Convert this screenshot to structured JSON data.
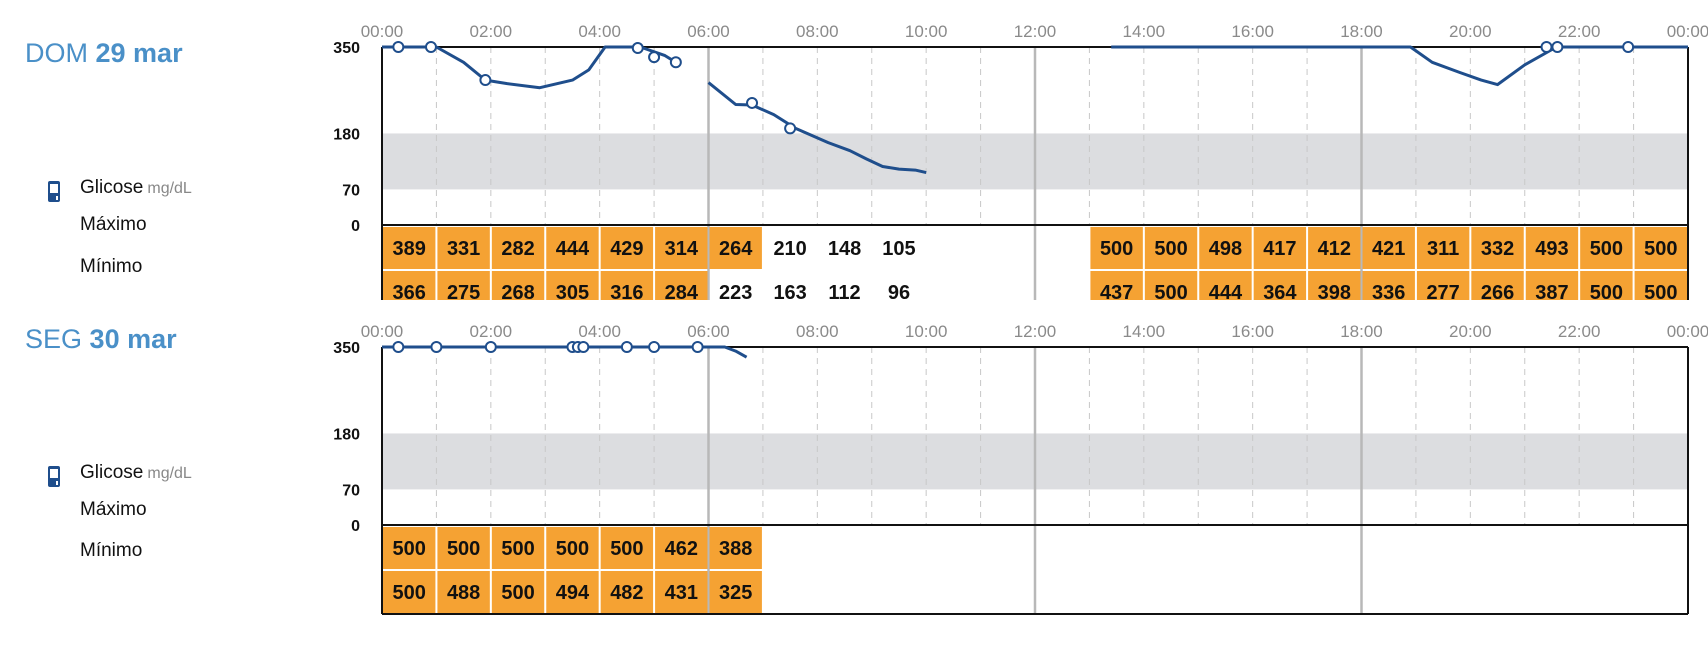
{
  "days": [
    {
      "dow": "DOM",
      "date": "29 mar",
      "metric_label": "Glicose",
      "unit": "mg/dL",
      "max_label": "Máximo",
      "min_label": "Mínimo",
      "max_values": [
        "389",
        "331",
        "282",
        "444",
        "429",
        "314",
        "264",
        "210",
        "148",
        "105",
        "",
        "",
        "",
        "500",
        "500",
        "498",
        "417",
        "412",
        "421",
        "311",
        "332",
        "493",
        "500",
        "500"
      ],
      "min_values": [
        "366",
        "275",
        "268",
        "305",
        "316",
        "284",
        "223",
        "163",
        "112",
        "96",
        "",
        "",
        "",
        "437",
        "500",
        "444",
        "364",
        "398",
        "336",
        "277",
        "266",
        "387",
        "500",
        "500"
      ],
      "max_highlight": [
        true,
        true,
        true,
        true,
        true,
        true,
        true,
        false,
        false,
        false,
        false,
        false,
        false,
        true,
        true,
        true,
        true,
        true,
        true,
        true,
        true,
        true,
        true,
        true
      ],
      "min_highlight": [
        true,
        true,
        true,
        true,
        true,
        true,
        false,
        false,
        false,
        false,
        false,
        false,
        false,
        true,
        true,
        true,
        true,
        true,
        true,
        true,
        true,
        true,
        true,
        true
      ]
    },
    {
      "dow": "SEG",
      "date": "30 mar",
      "metric_label": "Glicose",
      "unit": "mg/dL",
      "max_label": "Máximo",
      "min_label": "Mínimo",
      "max_values": [
        "500",
        "500",
        "500",
        "500",
        "500",
        "462",
        "388",
        "",
        "",
        "",
        "",
        "",
        "",
        "",
        "",
        "",
        "",
        "",
        "",
        "",
        "",
        "",
        "",
        ""
      ],
      "min_values": [
        "500",
        "488",
        "500",
        "494",
        "482",
        "431",
        "325",
        "",
        "",
        "",
        "",
        "",
        "",
        "",
        "",
        "",
        "",
        "",
        "",
        "",
        "",
        "",
        "",
        ""
      ],
      "max_highlight": [
        true,
        true,
        true,
        true,
        true,
        true,
        true,
        false,
        false,
        false,
        false,
        false,
        false,
        false,
        false,
        false,
        false,
        false,
        false,
        false,
        false,
        false,
        false,
        false
      ],
      "min_highlight": [
        true,
        true,
        true,
        true,
        true,
        true,
        true,
        false,
        false,
        false,
        false,
        false,
        false,
        false,
        false,
        false,
        false,
        false,
        false,
        false,
        false,
        false,
        false,
        false
      ]
    }
  ],
  "colors": {
    "line": "#1f4e8c",
    "target_band": "#dcdde0",
    "highlight_cell": "#f5a233",
    "title": "#4a90c8",
    "grid_major": "#b8b8b8",
    "grid_minor": "#c8c8c8"
  },
  "chart_data": [
    {
      "type": "line",
      "x_ticks": [
        "00:00",
        "02:00",
        "04:00",
        "06:00",
        "08:00",
        "10:00",
        "12:00",
        "14:00",
        "16:00",
        "18:00",
        "20:00",
        "22:00",
        "00:00"
      ],
      "y_ticks": [
        "350",
        "180",
        "70",
        "0"
      ],
      "ylim": [
        0,
        350
      ],
      "xlim_hours": [
        0,
        24
      ],
      "target_range": [
        70,
        180
      ],
      "series": [
        {
          "segments": [
            [
              [
                0,
                350
              ],
              [
                0.4,
                350
              ],
              [
                1.0,
                350
              ],
              [
                1.5,
                320
              ],
              [
                1.9,
                285
              ],
              [
                2.3,
                278
              ],
              [
                2.9,
                270
              ],
              [
                3.5,
                285
              ],
              [
                3.8,
                305
              ],
              [
                4.1,
                350
              ],
              [
                4.8,
                350
              ]
            ],
            [
              [
                4.8,
                348
              ],
              [
                5.2,
                333
              ],
              [
                5.4,
                320
              ]
            ],
            [
              [
                6.0,
                280
              ],
              [
                6.5,
                237
              ],
              [
                6.8,
                236
              ],
              [
                7.2,
                217
              ],
              [
                7.6,
                190
              ],
              [
                8.2,
                162
              ],
              [
                8.6,
                146
              ],
              [
                8.9,
                130
              ],
              [
                9.2,
                115
              ],
              [
                9.5,
                110
              ],
              [
                9.8,
                108
              ],
              [
                10.0,
                103
              ]
            ],
            [
              [
                13.4,
                350
              ],
              [
                18.9,
                350
              ],
              [
                19.3,
                320
              ],
              [
                19.8,
                300
              ],
              [
                20.2,
                285
              ],
              [
                20.5,
                276
              ],
              [
                21.0,
                315
              ],
              [
                21.5,
                345
              ],
              [
                21.7,
                350
              ],
              [
                22.2,
                350
              ],
              [
                24,
                350
              ]
            ]
          ],
          "points": [
            [
              0.3,
              350
            ],
            [
              0.9,
              350
            ],
            [
              1.9,
              285
            ],
            [
              4.7,
              348
            ],
            [
              5.0,
              330
            ],
            [
              5.4,
              320
            ],
            [
              6.8,
              240
            ],
            [
              7.5,
              190
            ],
            [
              21.4,
              350
            ],
            [
              21.6,
              350
            ],
            [
              22.9,
              350
            ]
          ]
        }
      ]
    },
    {
      "type": "line",
      "x_ticks": [
        "00:00",
        "02:00",
        "04:00",
        "06:00",
        "08:00",
        "10:00",
        "12:00",
        "14:00",
        "16:00",
        "18:00",
        "20:00",
        "22:00",
        "00:00"
      ],
      "y_ticks": [
        "350",
        "180",
        "70",
        "0"
      ],
      "ylim": [
        0,
        350
      ],
      "xlim_hours": [
        0,
        24
      ],
      "target_range": [
        70,
        180
      ],
      "series": [
        {
          "segments": [
            [
              [
                0,
                350
              ],
              [
                6.3,
                350
              ],
              [
                6.5,
                342
              ],
              [
                6.7,
                330
              ]
            ]
          ],
          "points": [
            [
              0.3,
              350
            ],
            [
              1.0,
              350
            ],
            [
              2.0,
              350
            ],
            [
              3.5,
              350
            ],
            [
              3.6,
              350
            ],
            [
              3.7,
              350
            ],
            [
              4.5,
              350
            ],
            [
              5.0,
              350
            ],
            [
              5.8,
              350
            ]
          ]
        }
      ]
    }
  ]
}
